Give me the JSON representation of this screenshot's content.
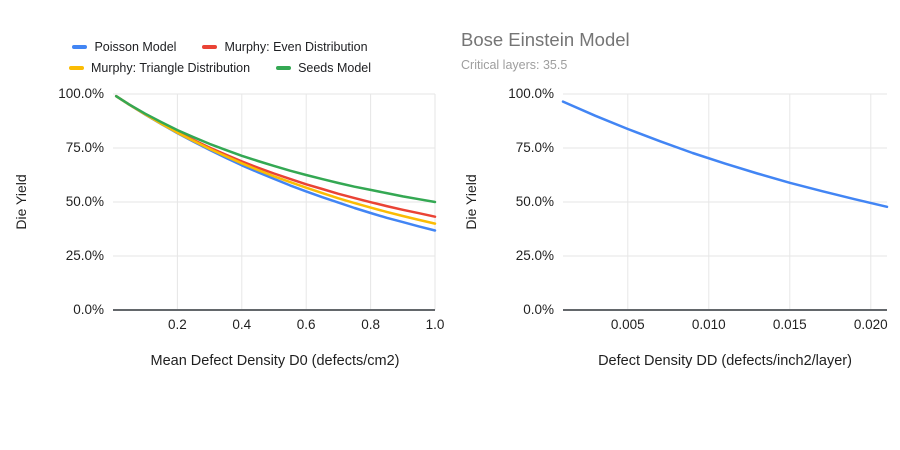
{
  "colors": {
    "background": "#ffffff",
    "gridline": "#e6e6e6",
    "baseline": "#63676b",
    "tick_text": "#1f1f1f",
    "title_text": "#757575",
    "subtitle_text": "#9e9e9e"
  },
  "chart_data": [
    {
      "type": "line",
      "title": "",
      "xlabel": "Mean Defect Density D0 (defects/cm2)",
      "ylabel": "Die Yield",
      "legend_position": "top",
      "grid": true,
      "xlim": [
        0,
        1.0
      ],
      "ylim": [
        0,
        1.0
      ],
      "xtick_values": [
        0.2,
        0.4,
        0.6,
        0.8,
        1.0
      ],
      "xtick_labels": [
        "0.2",
        "0.4",
        "0.6",
        "0.8",
        "1.0"
      ],
      "ytick_values": [
        0,
        0.25,
        0.5,
        0.75,
        1.0
      ],
      "ytick_labels": [
        "0.0%",
        "25.0%",
        "50.0%",
        "75.0%",
        "100.0%"
      ],
      "x": [
        0.01,
        0.05,
        0.1,
        0.15,
        0.2,
        0.25,
        0.3,
        0.35,
        0.4,
        0.45,
        0.5,
        0.55,
        0.6,
        0.65,
        0.7,
        0.75,
        0.8,
        0.85,
        0.9,
        0.95,
        1.0
      ],
      "series": [
        {
          "name": "Poisson Model",
          "color": "#4285f4",
          "values": [
            0.99,
            0.951,
            0.905,
            0.861,
            0.819,
            0.779,
            0.741,
            0.705,
            0.67,
            0.638,
            0.607,
            0.577,
            0.549,
            0.522,
            0.497,
            0.472,
            0.449,
            0.427,
            0.407,
            0.387,
            0.368
          ]
        },
        {
          "name": "Murphy: Even Distribution",
          "color": "#ea4335",
          "values": [
            0.99,
            0.952,
            0.906,
            0.864,
            0.824,
            0.787,
            0.752,
            0.719,
            0.688,
            0.659,
            0.632,
            0.607,
            0.582,
            0.56,
            0.538,
            0.518,
            0.499,
            0.481,
            0.464,
            0.448,
            0.432
          ]
        },
        {
          "name": "Murphy: Triangle Distribution",
          "color": "#fbbc04",
          "values": [
            0.99,
            0.951,
            0.906,
            0.862,
            0.821,
            0.783,
            0.746,
            0.712,
            0.679,
            0.648,
            0.619,
            0.592,
            0.566,
            0.541,
            0.517,
            0.495,
            0.474,
            0.454,
            0.435,
            0.417,
            0.4
          ]
        },
        {
          "name": "Seeds Model",
          "color": "#34a853",
          "values": [
            0.99,
            0.952,
            0.909,
            0.87,
            0.833,
            0.8,
            0.769,
            0.741,
            0.714,
            0.69,
            0.667,
            0.645,
            0.625,
            0.606,
            0.588,
            0.571,
            0.556,
            0.541,
            0.526,
            0.513,
            0.5
          ]
        }
      ]
    },
    {
      "type": "line",
      "title": "Bose Einstein Model",
      "subtitle": "Critical layers: 35.5",
      "xlabel": "Defect Density DD (defects/inch2/layer)",
      "ylabel": "Die Yield",
      "legend_position": "none",
      "grid": true,
      "xlim": [
        0.001,
        0.021
      ],
      "ylim": [
        0,
        1.0
      ],
      "xtick_values": [
        0.005,
        0.01,
        0.015,
        0.02
      ],
      "xtick_labels": [
        "0.005",
        "0.010",
        "0.015",
        "0.020"
      ],
      "ytick_values": [
        0,
        0.25,
        0.5,
        0.75,
        1.0
      ],
      "ytick_labels": [
        "0.0%",
        "25.0%",
        "50.0%",
        "75.0%",
        "100.0%"
      ],
      "x": [
        0.001,
        0.003,
        0.005,
        0.007,
        0.009,
        0.011,
        0.013,
        0.015,
        0.017,
        0.019,
        0.021
      ],
      "series": [
        {
          "name": "Bose Einstein Model",
          "color": "#4285f4",
          "values": [
            0.965,
            0.899,
            0.838,
            0.781,
            0.727,
            0.678,
            0.632,
            0.589,
            0.55,
            0.513,
            0.478
          ]
        }
      ]
    }
  ]
}
